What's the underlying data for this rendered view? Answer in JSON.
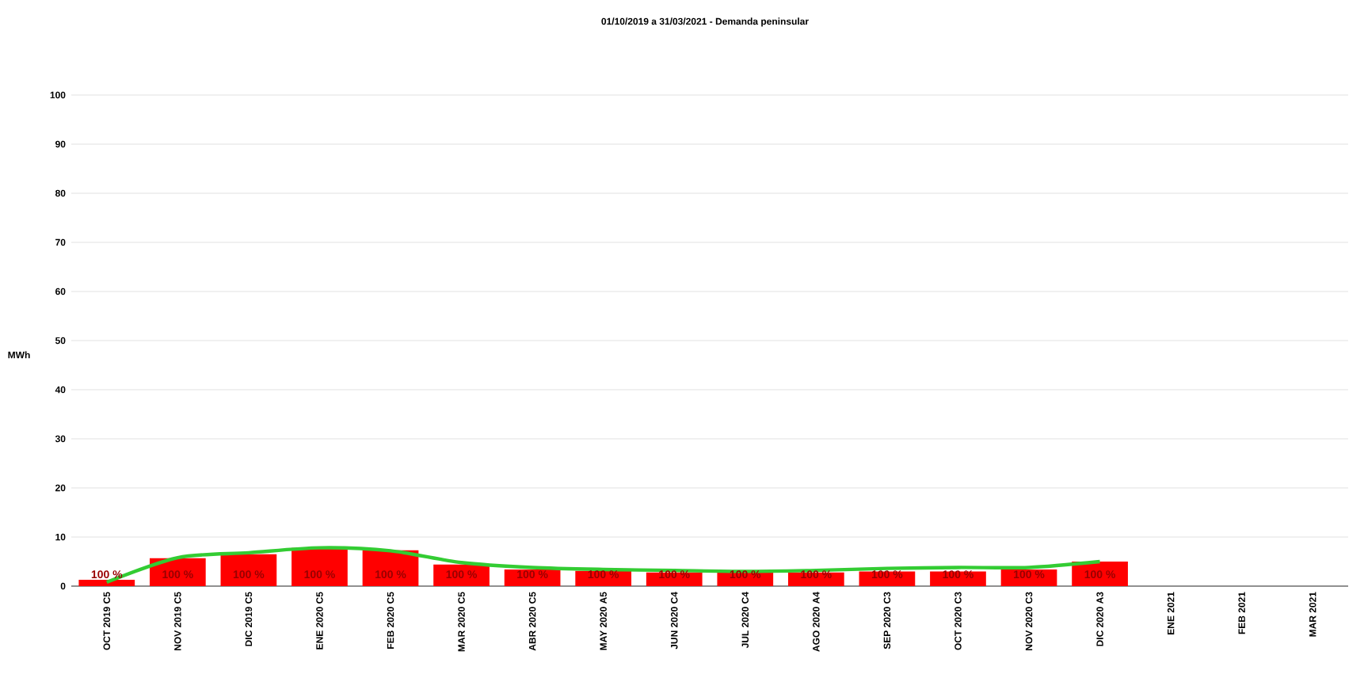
{
  "chart_data": {
    "type": "bar",
    "title": "01/10/2019 a 31/03/2021 - Demanda peninsular",
    "ylabel": "MWh",
    "categories": [
      "OCT 2019 C5",
      "NOV 2019 C5",
      "DIC 2019 C5",
      "ENE 2020 C5",
      "FEB 2020 C5",
      "MAR 2020 C5",
      "ABR 2020 C5",
      "MAY 2020 A5",
      "JUN 2020 C4",
      "JUL 2020 C4",
      "AGO 2020 A4",
      "SEP 2020 C3",
      "OCT 2020 C3",
      "NOV 2020 C3",
      "DIC 2020 A3",
      "ENE 2021",
      "FEB 2021",
      "MAR 2021"
    ],
    "series": [
      {
        "color": "#ff0000",
        "values": [
          1.3,
          5.7,
          6.5,
          7.8,
          7.3,
          4.4,
          3.4,
          3.1,
          2.8,
          2.8,
          2.8,
          3.0,
          3.0,
          3.4,
          5.0,
          null,
          null,
          null
        ]
      },
      {
        "type": "line",
        "color": "#33cc33",
        "values": [
          0.8,
          5.8,
          6.8,
          7.8,
          7.2,
          4.8,
          3.8,
          3.4,
          3.2,
          3.0,
          3.2,
          3.6,
          3.8,
          3.8,
          5.0,
          null,
          null,
          null
        ]
      }
    ],
    "ylim": [
      0,
      100
    ],
    "yticks": [
      0,
      10,
      20,
      30,
      40,
      50,
      60,
      70,
      80,
      90,
      100
    ],
    "grid": "y",
    "annotations": [
      "100 %",
      "100 %",
      "100 %",
      "100 %",
      "100 %",
      "100 %",
      "100 %",
      "100 %",
      "100 %",
      "100 %",
      "100 %",
      "100 %",
      "100 %",
      "100 %",
      "100 %"
    ]
  }
}
